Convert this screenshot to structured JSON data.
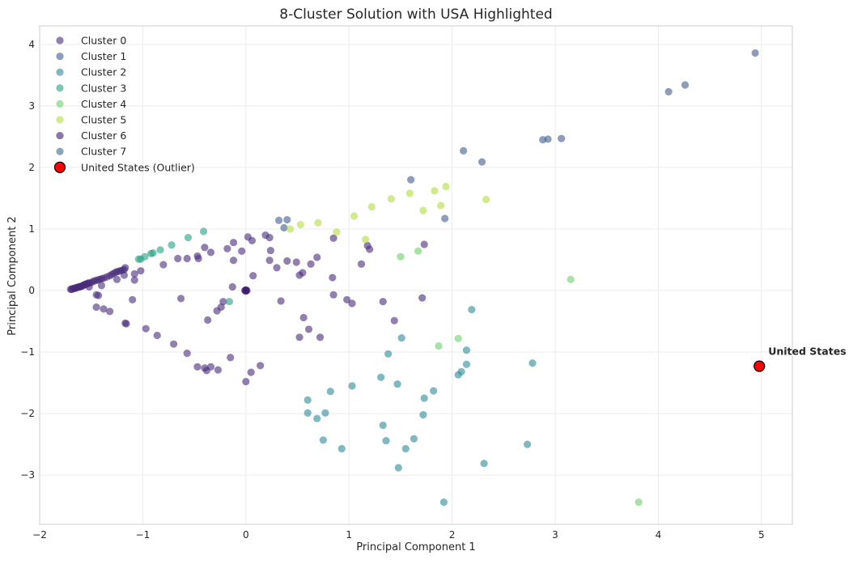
{
  "chart_data": {
    "type": "scatter",
    "title": "8-Cluster Solution with USA Highlighted",
    "xlabel": "Principal Component 1",
    "ylabel": "Principal Component 2",
    "xlim": [
      -2,
      5.3
    ],
    "ylim": [
      -3.8,
      4.3
    ],
    "xticks": [
      -2,
      -1,
      0,
      1,
      2,
      3,
      4,
      5
    ],
    "yticks": [
      -3,
      -2,
      -1,
      0,
      1,
      2,
      3,
      4
    ],
    "xtick_labels": [
      "−2",
      "−1",
      "0",
      "1",
      "2",
      "3",
      "4",
      "5"
    ],
    "ytick_labels": [
      "−3",
      "−2",
      "−1",
      "0",
      "1",
      "2",
      "3",
      "4"
    ],
    "grid": true,
    "legend_position": "top-left",
    "series": [
      {
        "name": "Cluster 0",
        "color": "#472c7a",
        "points": [
          [
            -1.7,
            0.02
          ],
          [
            -1.69,
            0.02
          ],
          [
            -1.68,
            0.03
          ],
          [
            -1.67,
            0.03
          ],
          [
            -1.66,
            0.04
          ],
          [
            -1.65,
            0.04
          ],
          [
            -1.64,
            0.05
          ],
          [
            -1.63,
            0.05
          ],
          [
            -1.62,
            0.06
          ],
          [
            -1.61,
            0.06
          ],
          [
            -1.6,
            0.07
          ],
          [
            -1.59,
            0.07
          ],
          [
            -1.58,
            0.08
          ],
          [
            -1.57,
            0.09
          ],
          [
            -1.56,
            0.1
          ],
          [
            -1.55,
            0.1
          ],
          [
            -1.54,
            0.11
          ],
          [
            -1.53,
            0.12
          ],
          [
            -1.52,
            0.12
          ],
          [
            -1.5,
            0.13
          ],
          [
            -1.48,
            0.15
          ],
          [
            -1.46,
            0.16
          ],
          [
            -1.44,
            0.17
          ],
          [
            -1.42,
            0.18
          ],
          [
            -1.4,
            0.19
          ],
          [
            -1.38,
            0.2
          ],
          [
            -1.35,
            0.22
          ],
          [
            -1.32,
            0.24
          ],
          [
            -1.3,
            0.26
          ],
          [
            -1.28,
            0.28
          ],
          [
            -1.26,
            0.3
          ],
          [
            -1.24,
            0.31
          ],
          [
            -1.22,
            0.32
          ],
          [
            -1.2,
            0.33
          ],
          [
            -1.18,
            0.34
          ],
          [
            -1.17,
            0.37
          ],
          [
            -1.18,
            0.25
          ],
          [
            -1.25,
            0.18
          ],
          [
            -1.4,
            0.08
          ],
          [
            -1.52,
            0.06
          ],
          [
            -1.45,
            -0.07
          ],
          [
            -1.43,
            -0.08
          ],
          [
            -1.45,
            -0.27
          ],
          [
            -1.38,
            -0.3
          ],
          [
            -1.32,
            -0.34
          ],
          [
            -1.17,
            -0.53
          ],
          [
            -1.16,
            -0.54
          ],
          [
            -1.1,
            -0.15
          ],
          [
            -1.08,
            0.17
          ],
          [
            -1.02,
            0.32
          ],
          [
            -1.08,
            0.27
          ],
          [
            -0.97,
            -0.62
          ],
          [
            -0.86,
            -0.73
          ],
          [
            -0.7,
            -0.87
          ],
          [
            -0.57,
            -1.02
          ],
          [
            -0.47,
            -1.24
          ],
          [
            -0.4,
            -1.26
          ],
          [
            -0.38,
            -1.3
          ],
          [
            -0.34,
            -1.24
          ],
          [
            -0.27,
            -1.29
          ],
          [
            -0.28,
            -0.33
          ],
          [
            -0.24,
            -0.27
          ],
          [
            -0.22,
            -0.18
          ],
          [
            -0.15,
            -1.09
          ],
          [
            0.0,
            -1.48
          ],
          [
            0.05,
            -1.33
          ],
          [
            0.14,
            -1.22
          ],
          [
            -0.8,
            0.42
          ],
          [
            -0.66,
            0.52
          ],
          [
            -0.57,
            0.52
          ],
          [
            -0.47,
            0.56
          ],
          [
            -0.46,
            0.52
          ],
          [
            -0.4,
            0.7
          ],
          [
            -0.34,
            0.62
          ],
          [
            -0.37,
            -0.48
          ],
          [
            -0.63,
            -0.13
          ],
          [
            -0.18,
            0.68
          ],
          [
            -0.12,
            0.78
          ],
          [
            -0.12,
            0.49
          ],
          [
            -0.04,
            0.64
          ],
          [
            0.02,
            0.87
          ],
          [
            0.06,
            0.81
          ],
          [
            0.07,
            0.24
          ],
          [
            -0.13,
            0.06
          ],
          [
            0.19,
            0.9
          ],
          [
            0.23,
            0.86
          ],
          [
            0.24,
            0.65
          ],
          [
            0.23,
            0.49
          ],
          [
            0.3,
            0.37
          ],
          [
            0.34,
            -0.17
          ],
          [
            0.4,
            0.48
          ],
          [
            0.49,
            0.46
          ],
          [
            0.52,
            0.25
          ],
          [
            0.55,
            0.29
          ],
          [
            0.52,
            -0.76
          ],
          [
            0.56,
            -0.44
          ],
          [
            0.61,
            -0.63
          ],
          [
            0.63,
            0.43
          ],
          [
            0.69,
            0.54
          ],
          [
            0.72,
            -0.76
          ],
          [
            0.84,
            0.21
          ],
          [
            0.85,
            -0.07
          ],
          [
            0.98,
            -0.15
          ],
          [
            1.03,
            -0.21
          ],
          [
            1.12,
            0.43
          ],
          [
            1.18,
            0.73
          ],
          [
            1.2,
            0.67
          ],
          [
            1.33,
            -0.18
          ],
          [
            1.44,
            -0.49
          ],
          [
            1.71,
            -0.12
          ],
          [
            1.73,
            0.75
          ],
          [
            0.85,
            0.85
          ]
        ]
      },
      {
        "name": "Cluster 1",
        "color": "#3f5e8f",
        "points": [
          [
            4.94,
            3.86
          ],
          [
            4.26,
            3.34
          ],
          [
            4.1,
            3.23
          ],
          [
            3.06,
            2.47
          ],
          [
            2.93,
            2.46
          ],
          [
            2.88,
            2.45
          ],
          [
            2.29,
            2.09
          ],
          [
            2.11,
            2.27
          ],
          [
            1.6,
            1.8
          ],
          [
            1.93,
            1.17
          ],
          [
            0.32,
            1.14
          ],
          [
            0.4,
            1.15
          ],
          [
            0.37,
            1.02
          ]
        ]
      },
      {
        "name": "Cluster 2",
        "color": "#2d8a98",
        "points": [
          [
            2.19,
            -0.31
          ],
          [
            2.78,
            -1.18
          ],
          [
            2.14,
            -0.97
          ],
          [
            2.14,
            -1.2
          ],
          [
            2.09,
            -1.32
          ],
          [
            2.06,
            -1.37
          ],
          [
            1.82,
            -1.63
          ],
          [
            1.73,
            -1.75
          ],
          [
            1.72,
            -2.02
          ],
          [
            1.63,
            -2.41
          ],
          [
            1.55,
            -2.57
          ],
          [
            1.48,
            -2.88
          ],
          [
            1.36,
            -2.44
          ],
          [
            1.33,
            -2.19
          ],
          [
            1.31,
            -1.41
          ],
          [
            1.38,
            -1.03
          ],
          [
            1.47,
            -1.52
          ],
          [
            1.51,
            -0.77
          ],
          [
            1.03,
            -1.55
          ],
          [
            0.82,
            -1.64
          ],
          [
            0.93,
            -2.57
          ],
          [
            0.75,
            -2.43
          ],
          [
            0.77,
            -1.99
          ],
          [
            0.69,
            -2.08
          ],
          [
            0.6,
            -1.99
          ],
          [
            0.6,
            -1.78
          ],
          [
            2.31,
            -2.81
          ],
          [
            2.73,
            -2.5
          ],
          [
            1.92,
            -3.44
          ]
        ]
      },
      {
        "name": "Cluster 3",
        "color": "#27a083",
        "points": [
          [
            -1.04,
            0.51
          ],
          [
            -1.02,
            0.51
          ],
          [
            -0.98,
            0.55
          ],
          [
            -0.92,
            0.6
          ],
          [
            -0.9,
            0.61
          ],
          [
            -0.83,
            0.66
          ],
          [
            -0.72,
            0.74
          ],
          [
            -0.56,
            0.86
          ],
          [
            -0.41,
            0.96
          ],
          [
            -0.16,
            -0.18
          ]
        ]
      },
      {
        "name": "Cluster 4",
        "color": "#6ece6c",
        "points": [
          [
            3.15,
            0.18
          ],
          [
            1.67,
            0.64
          ],
          [
            1.5,
            0.55
          ],
          [
            1.87,
            -0.9
          ],
          [
            2.06,
            -0.78
          ],
          [
            3.81,
            -3.44
          ]
        ]
      },
      {
        "name": "Cluster 5",
        "color": "#b3dd3f",
        "points": [
          [
            0.43,
            1.0
          ],
          [
            0.53,
            1.07
          ],
          [
            0.7,
            1.1
          ],
          [
            0.88,
            0.95
          ],
          [
            1.05,
            1.21
          ],
          [
            1.16,
            0.83
          ],
          [
            1.22,
            1.36
          ],
          [
            1.41,
            1.49
          ],
          [
            1.59,
            1.58
          ],
          [
            1.72,
            1.3
          ],
          [
            1.83,
            1.62
          ],
          [
            1.89,
            1.38
          ],
          [
            1.94,
            1.69
          ],
          [
            2.33,
            1.48
          ]
        ]
      },
      {
        "name": "Cluster 6",
        "color": "#3b1d6e",
        "points": [
          [
            -0.01,
            0.0
          ],
          [
            0.0,
            0.0
          ],
          [
            0.01,
            0.0
          ],
          [
            0.0,
            0.01
          ],
          [
            0.0,
            -0.01
          ]
        ]
      },
      {
        "name": "Cluster 7",
        "color": "#3b6b8e",
        "points": []
      }
    ],
    "highlight": {
      "name": "United States (Outlier)",
      "label": "United States",
      "x": 4.98,
      "y": -1.23,
      "color": "#ff0000"
    }
  }
}
